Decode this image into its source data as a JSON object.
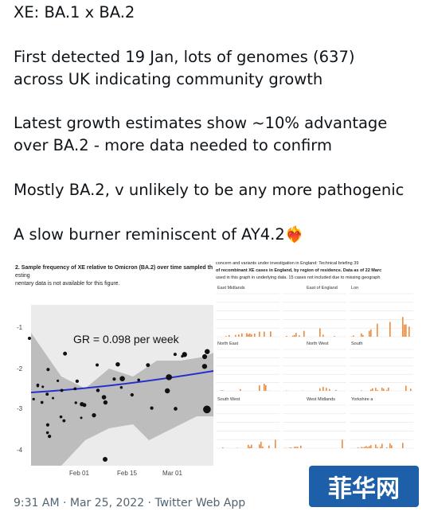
{
  "tweet": {
    "lines": [
      "XE: BA.1 x BA.2",
      "First detected 19 Jan, lots of genomes (637)",
      "across UK indicating community growth",
      "Latest growth estimates show ~10% advantage",
      "over BA.2 - more data needed to confirm",
      "Mostly BA.2, v unlikely to be any more pathogenic",
      "A slow burner reminiscent of AY4.2❤️‍🔥"
    ],
    "left_image": {
      "header": [
        "2. Sample frequency of XE relative to Omicron (BA.2) over time sampled th",
        "esting",
        "nentary data is not available for this figure."
      ],
      "annotation": "GR = 0.098 per week",
      "y_labels": [
        "-1",
        "-2",
        "-3",
        "-4"
      ],
      "x_labels": [
        "Feb 01",
        "Feb 15",
        "Mar 01"
      ]
    },
    "right_image": {
      "header": [
        "concern and variants under investigation in England: Technical briefing 39",
        "of recombinant XE cases in England, by region of residence. Data as of 22 Marc",
        "used in this graph in underlying data. 15 cases not included due to missing geograph"
      ],
      "panels": [
        "East Midlands",
        "East of England",
        "Lon",
        "North East",
        "North West",
        "South",
        "South West",
        "West Midlands",
        "Yorkshire a"
      ]
    },
    "timestamp": "9:31 AM · Mar 25, 2022 · Twitter Web App"
  },
  "watermark": "菲华网"
}
